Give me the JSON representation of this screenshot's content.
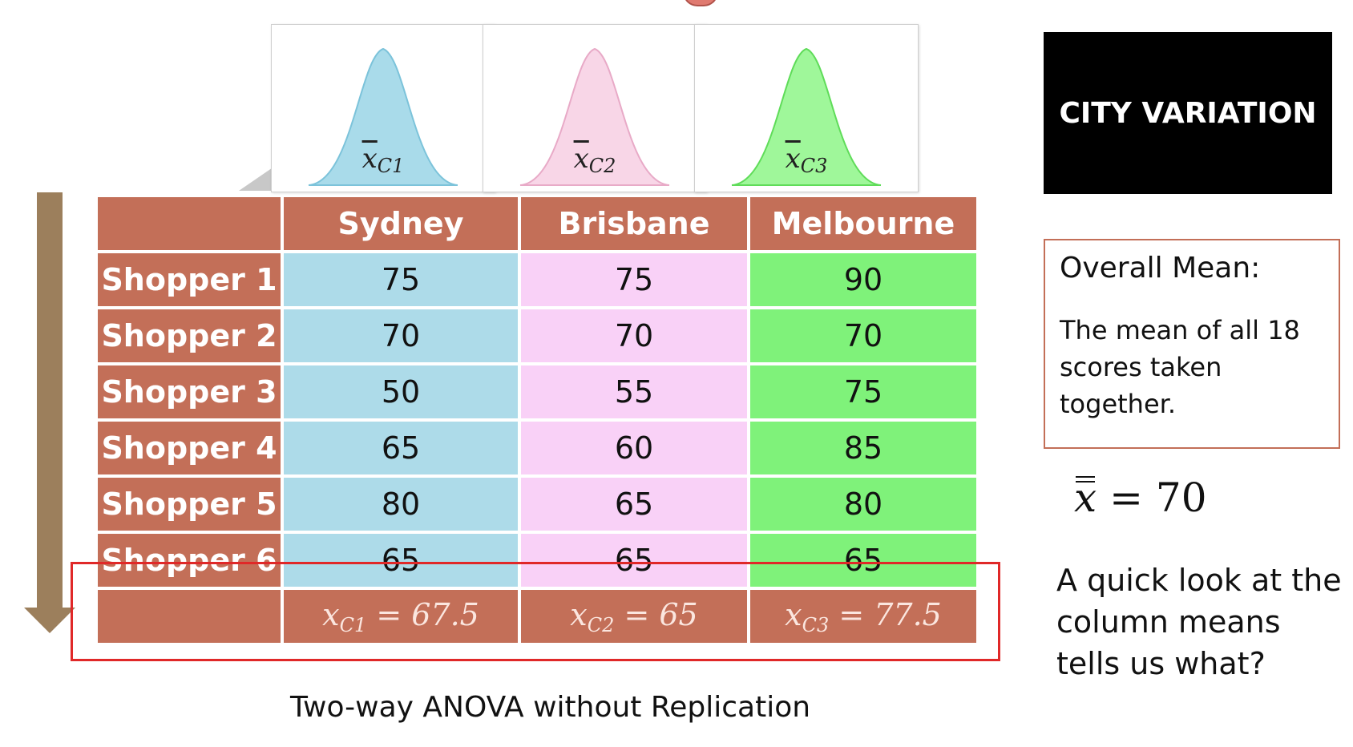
{
  "slide": {
    "distributions": [
      {
        "label_sub": "C1",
        "color": "#a9dbea",
        "stroke": "#7cc3da"
      },
      {
        "label_sub": "C2",
        "color": "#f8d6e7",
        "stroke": "#e8aac7"
      },
      {
        "label_sub": "C3",
        "color": "#9ff79a",
        "stroke": "#5fdc59"
      }
    ],
    "table": {
      "columns": [
        "Sydney",
        "Brisbane",
        "Melbourne"
      ],
      "rows": [
        {
          "label": "Shopper 1",
          "values": [
            "75",
            "75",
            "90"
          ]
        },
        {
          "label": "Shopper 2",
          "values": [
            "70",
            "70",
            "70"
          ]
        },
        {
          "label": "Shopper 3",
          "values": [
            "50",
            "55",
            "75"
          ]
        },
        {
          "label": "Shopper 4",
          "values": [
            "65",
            "60",
            "85"
          ]
        },
        {
          "label": "Shopper 5",
          "values": [
            "80",
            "65",
            "80"
          ]
        },
        {
          "label": "Shopper 6",
          "values": [
            "65",
            "65",
            "65"
          ]
        }
      ],
      "means": [
        {
          "sub": "C1",
          "value": "= 67.5"
        },
        {
          "sub": "C2",
          "value": "= 65"
        },
        {
          "sub": "C3",
          "value": "= 77.5"
        }
      ]
    },
    "caption": "Two-way ANOVA without Replication",
    "city_title": "CITY VARIATION",
    "overall_mean": {
      "title": "Overall Mean:",
      "description": "The mean of all 18 scores taken together."
    },
    "grand_mean": "= 70",
    "question": "A quick look at the column means tells us what?",
    "colors": {
      "header": "#c36f58",
      "sydney": "#addbe9",
      "brisbane": "#f9d1f7",
      "melbourne": "#7ff27a",
      "highlight": "#e02828",
      "arrow": "#9c7f5c"
    }
  }
}
